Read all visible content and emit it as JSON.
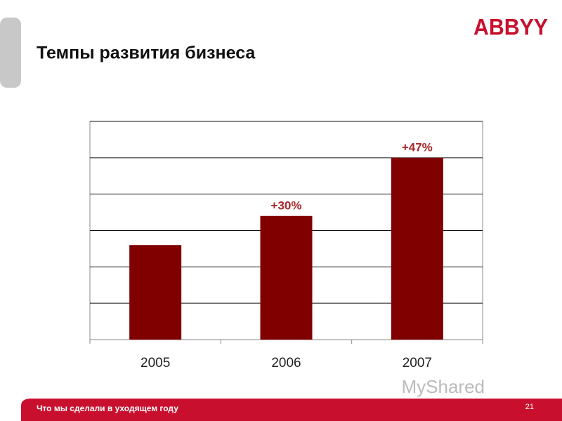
{
  "logo": "ABBYY",
  "footer": {
    "text": "Что мы сделали в уходящем году",
    "page": "21"
  },
  "watermark": "MyShared",
  "chart_data": {
    "type": "bar",
    "title": "Темпы развития бизнеса",
    "categories": [
      "2005",
      "2006",
      "2007"
    ],
    "values": [
      2.6,
      3.4,
      5.0
    ],
    "annotations": [
      null,
      "+30%",
      "+47%"
    ],
    "color": "#800000",
    "ylim": [
      0,
      6
    ],
    "gridlines": [
      1,
      2,
      3,
      4,
      5,
      6
    ]
  }
}
